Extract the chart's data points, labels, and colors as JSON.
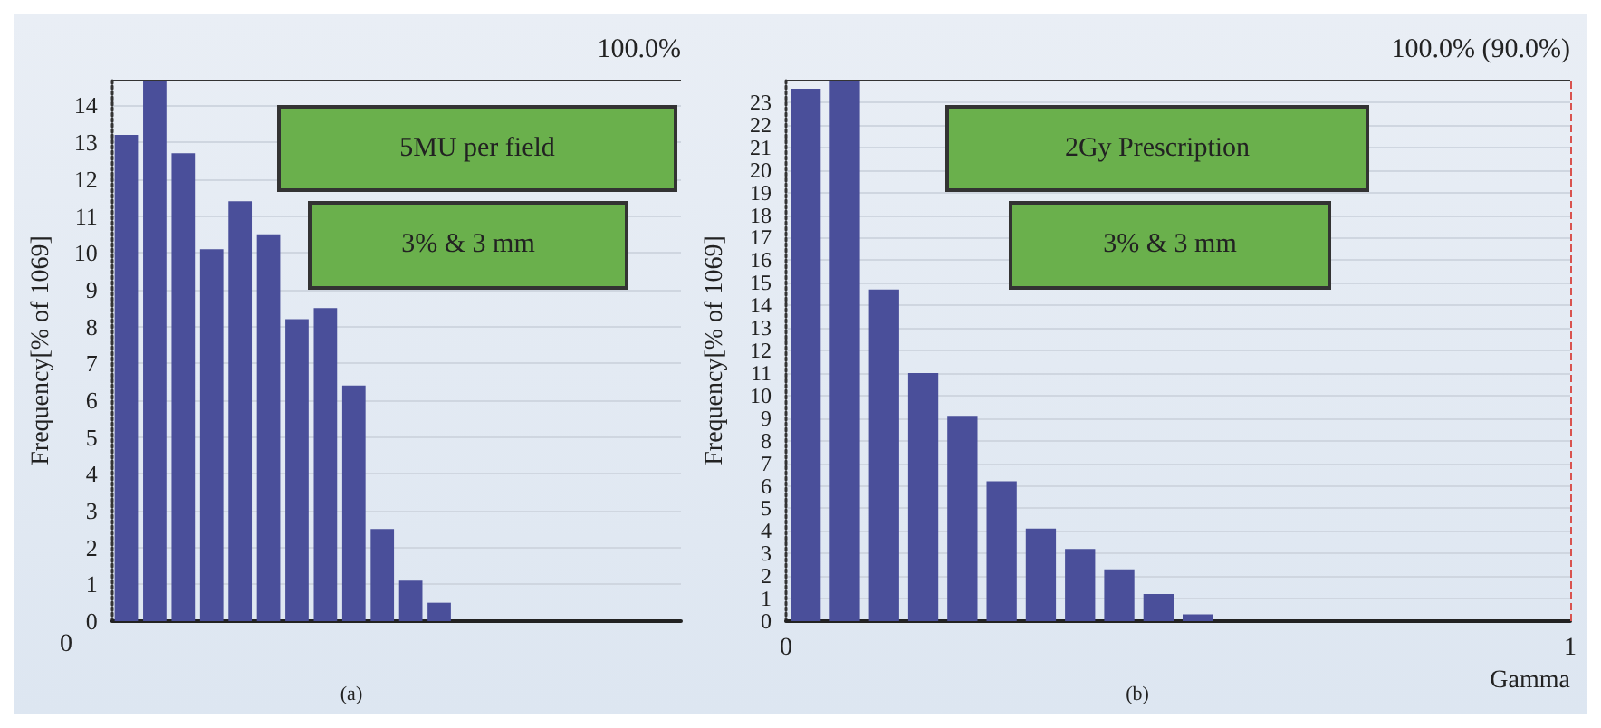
{
  "chart_data": [
    {
      "type": "bar",
      "ylabel": "Frequency[% of 1069]",
      "categories": [
        null,
        null,
        null,
        null,
        null,
        null,
        null,
        null,
        null,
        null,
        null,
        null,
        null,
        null,
        null,
        null,
        null,
        null,
        null,
        null
      ],
      "values": [
        13.2,
        14.7,
        12.7,
        10.1,
        11.4,
        10.5,
        8.2,
        8.5,
        6.4,
        2.5,
        1.1,
        0.5,
        null,
        null,
        null,
        null,
        null,
        null,
        null,
        null
      ],
      "color": "#4a4f9a",
      "ylim": [
        0,
        14.7
      ],
      "yticks": [
        0,
        1,
        2,
        3,
        4,
        5,
        6,
        7,
        8,
        9,
        10,
        11,
        12,
        13,
        14
      ],
      "grid": "y",
      "annotations": [
        "100.0%",
        "5MU per field",
        "3% & 3 mm",
        "0",
        "(a)"
      ]
    },
    {
      "type": "histogram",
      "ylabel": "Frequency[% of 1069]",
      "xlabel": "Gamma",
      "bins": [
        0,
        0.05,
        0.1,
        0.15,
        0.2,
        0.25,
        0.3,
        0.35,
        0.4,
        0.45,
        0.5,
        0.55
      ],
      "values": [
        23.6,
        24,
        14.7,
        11,
        9.1,
        6.2,
        4.1,
        3.2,
        2.3,
        1.2,
        0.3
      ],
      "color": "#4a4f9a",
      "xlim": [
        0,
        1
      ],
      "xticks": [
        0,
        1
      ],
      "ylim": [
        0,
        24
      ],
      "yticks": [
        0,
        1,
        2,
        3,
        4,
        5,
        6,
        7,
        8,
        9,
        10,
        11,
        12,
        13,
        14,
        15,
        16,
        17,
        18,
        19,
        20,
        21,
        22,
        23
      ],
      "grid": "y",
      "ref_lines": [
        {
          "axis": "x",
          "value": 1,
          "color": "#d9534f",
          "line_style": "dashed"
        }
      ],
      "annotations": [
        "100.0% (90.0%)",
        "2Gy Prescription",
        "3% & 3 mm",
        "(b)"
      ]
    }
  ]
}
